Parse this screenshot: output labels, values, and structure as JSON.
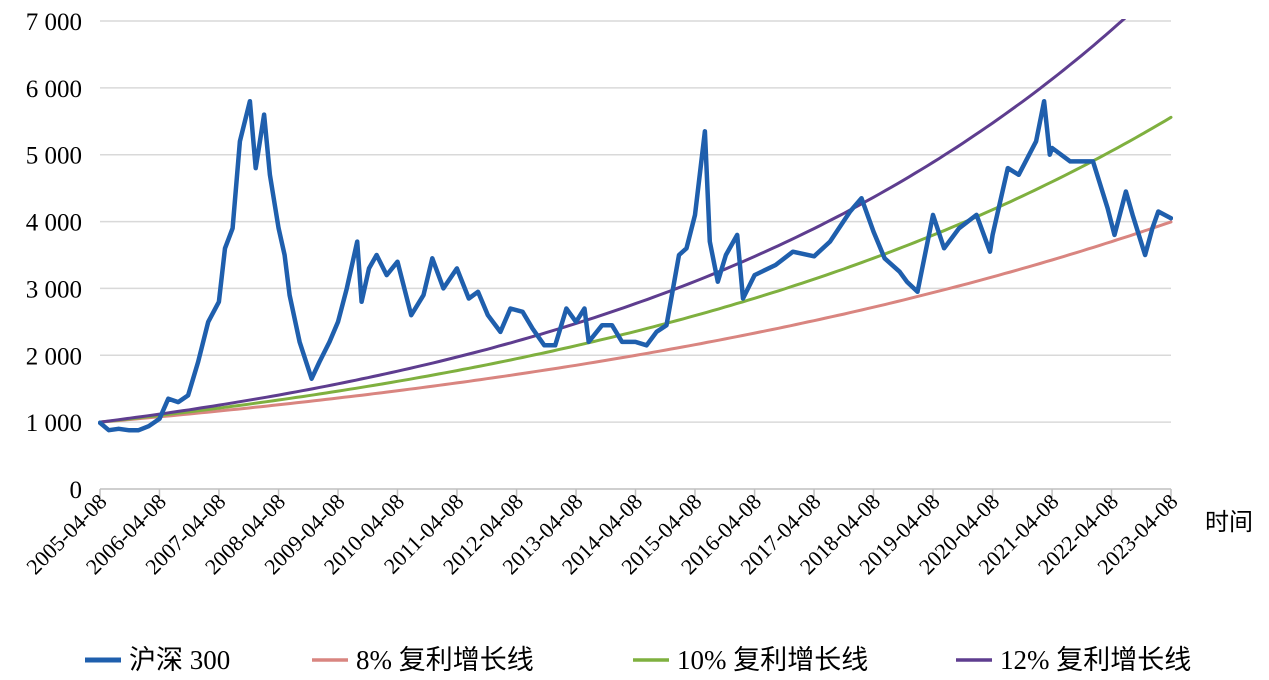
{
  "chart_data": {
    "type": "line",
    "title": "",
    "xlabel": "时间",
    "ylabel": "",
    "ylim": [
      0,
      7000
    ],
    "yticks": [
      0,
      1000,
      2000,
      3000,
      4000,
      5000,
      6000,
      7000
    ],
    "ytick_labels": [
      "0",
      "1 000",
      "2 000",
      "3 000",
      "4 000",
      "5 000",
      "6 000",
      "7 000"
    ],
    "xlim": [
      "2005-04-08",
      "2023-04-08"
    ],
    "xtick_labels": [
      "2005-04-08",
      "2006-04-08",
      "2007-04-08",
      "2008-04-08",
      "2009-04-08",
      "2010-04-08",
      "2011-04-08",
      "2012-04-08",
      "2013-04-08",
      "2014-04-08",
      "2015-04-08",
      "2016-04-08",
      "2017-04-08",
      "2018-04-08",
      "2019-04-08",
      "2020-04-08",
      "2021-04-08",
      "2022-04-08",
      "2023-04-08"
    ],
    "grid": true,
    "legend_position": "bottom",
    "series": [
      {
        "name": "沪深 300",
        "color": "#1f5fad",
        "points": [
          [
            "2005-04-08",
            990
          ],
          [
            "2005-06-01",
            880
          ],
          [
            "2005-08-01",
            900
          ],
          [
            "2005-10-01",
            880
          ],
          [
            "2005-12-01",
            880
          ],
          [
            "2006-02-01",
            940
          ],
          [
            "2006-04-08",
            1050
          ],
          [
            "2006-06-01",
            1350
          ],
          [
            "2006-08-01",
            1300
          ],
          [
            "2006-10-01",
            1400
          ],
          [
            "2006-12-01",
            1900
          ],
          [
            "2007-02-01",
            2500
          ],
          [
            "2007-04-08",
            2800
          ],
          [
            "2007-05-15",
            3600
          ],
          [
            "2007-07-01",
            3900
          ],
          [
            "2007-08-15",
            5200
          ],
          [
            "2007-10-15",
            5800
          ],
          [
            "2007-11-20",
            4800
          ],
          [
            "2008-01-10",
            5600
          ],
          [
            "2008-02-15",
            4700
          ],
          [
            "2008-04-08",
            3900
          ],
          [
            "2008-05-15",
            3500
          ],
          [
            "2008-06-15",
            2900
          ],
          [
            "2008-08-15",
            2200
          ],
          [
            "2008-10-28",
            1650
          ],
          [
            "2008-12-15",
            1900
          ],
          [
            "2009-02-15",
            2200
          ],
          [
            "2009-04-08",
            2500
          ],
          [
            "2009-06-01",
            3000
          ],
          [
            "2009-08-04",
            3700
          ],
          [
            "2009-08-31",
            2800
          ],
          [
            "2009-10-15",
            3300
          ],
          [
            "2009-12-01",
            3500
          ],
          [
            "2010-02-01",
            3200
          ],
          [
            "2010-04-08",
            3400
          ],
          [
            "2010-07-01",
            2600
          ],
          [
            "2010-09-15",
            2900
          ],
          [
            "2010-11-08",
            3450
          ],
          [
            "2011-01-15",
            3000
          ],
          [
            "2011-04-08",
            3300
          ],
          [
            "2011-06-20",
            2850
          ],
          [
            "2011-08-15",
            2950
          ],
          [
            "2011-10-15",
            2600
          ],
          [
            "2011-12-31",
            2350
          ],
          [
            "2012-03-01",
            2700
          ],
          [
            "2012-05-15",
            2650
          ],
          [
            "2012-07-15",
            2400
          ],
          [
            "2012-09-25",
            2150
          ],
          [
            "2012-12-01",
            2150
          ],
          [
            "2013-02-08",
            2700
          ],
          [
            "2013-04-08",
            2500
          ],
          [
            "2013-05-30",
            2700
          ],
          [
            "2013-06-25",
            2200
          ],
          [
            "2013-09-15",
            2450
          ],
          [
            "2013-11-15",
            2450
          ],
          [
            "2014-01-15",
            2200
          ],
          [
            "2014-04-08",
            2200
          ],
          [
            "2014-06-15",
            2150
          ],
          [
            "2014-08-15",
            2350
          ],
          [
            "2014-10-15",
            2450
          ],
          [
            "2014-12-31",
            3500
          ],
          [
            "2015-02-15",
            3600
          ],
          [
            "2015-04-08",
            4100
          ],
          [
            "2015-06-08",
            5350
          ],
          [
            "2015-07-08",
            3700
          ],
          [
            "2015-08-26",
            3100
          ],
          [
            "2015-10-15",
            3500
          ],
          [
            "2015-12-23",
            3800
          ],
          [
            "2016-01-28",
            2850
          ],
          [
            "2016-04-08",
            3200
          ],
          [
            "2016-08-15",
            3350
          ],
          [
            "2016-11-29",
            3550
          ],
          [
            "2017-04-08",
            3480
          ],
          [
            "2017-07-15",
            3700
          ],
          [
            "2017-11-15",
            4150
          ],
          [
            "2018-01-24",
            4350
          ],
          [
            "2018-04-08",
            3850
          ],
          [
            "2018-06-15",
            3450
          ],
          [
            "2018-09-15",
            3250
          ],
          [
            "2018-10-30",
            3100
          ],
          [
            "2019-01-03",
            2950
          ],
          [
            "2019-04-08",
            4100
          ],
          [
            "2019-06-15",
            3600
          ],
          [
            "2019-09-15",
            3900
          ],
          [
            "2019-12-31",
            4100
          ],
          [
            "2020-03-23",
            3550
          ],
          [
            "2020-04-08",
            3800
          ],
          [
            "2020-07-10",
            4800
          ],
          [
            "2020-09-15",
            4700
          ],
          [
            "2020-12-31",
            5200
          ],
          [
            "2021-02-18",
            5800
          ],
          [
            "2021-03-25",
            5000
          ],
          [
            "2021-04-08",
            5100
          ],
          [
            "2021-07-28",
            4900
          ],
          [
            "2021-10-15",
            4900
          ],
          [
            "2021-12-15",
            4900
          ],
          [
            "2022-03-15",
            4200
          ],
          [
            "2022-04-26",
            3800
          ],
          [
            "2022-07-05",
            4450
          ],
          [
            "2022-08-15",
            4100
          ],
          [
            "2022-10-31",
            3500
          ],
          [
            "2022-12-15",
            3900
          ],
          [
            "2023-01-20",
            4150
          ],
          [
            "2023-04-08",
            4050
          ]
        ]
      },
      {
        "name": "8% 复利增长线",
        "color": "#d98580",
        "start_value": 1000,
        "annual_growth_rate": 0.08
      },
      {
        "name": "10% 复利增长线",
        "color": "#7fb03f",
        "start_value": 1000,
        "annual_growth_rate": 0.1
      },
      {
        "name": "12% 复利增长线",
        "color": "#5e3d8f",
        "start_value": 1000,
        "annual_growth_rate": 0.12
      }
    ]
  }
}
